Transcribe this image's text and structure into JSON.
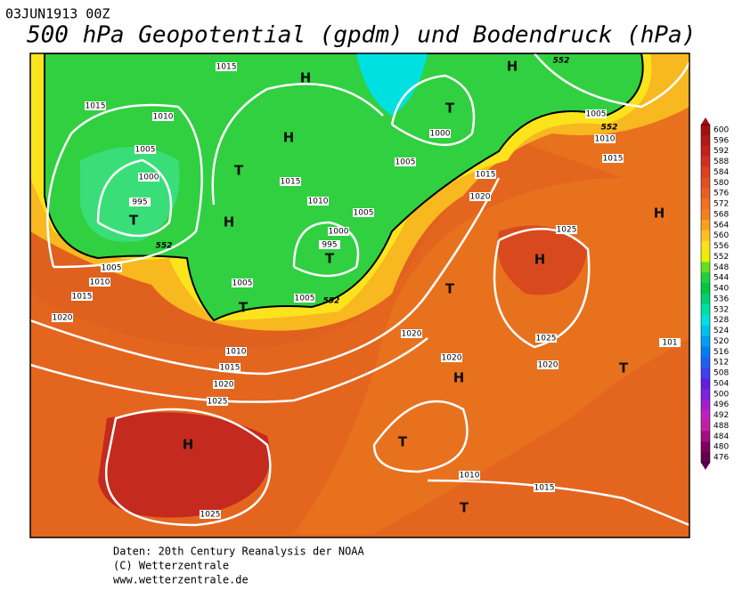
{
  "header": {
    "date": "03JUN1913 00Z",
    "title": "500 hPa Geopotential (gpdm) und Bodendruck (hPa)"
  },
  "isobar_labels": [
    "1015",
    "1015",
    "1010",
    "1005",
    "1000",
    "995",
    "1015",
    "1010",
    "1005",
    "1000",
    "995",
    "1005",
    "1005",
    "1005",
    "1010",
    "1015",
    "1020",
    "1010",
    "1015",
    "1020",
    "1025",
    "1025",
    "1000",
    "1005",
    "1015",
    "1020",
    "1025",
    "1025",
    "1020",
    "1020",
    "1020",
    "1010",
    "1015",
    "1005",
    "1010",
    "1015",
    "101"
  ],
  "geopotential_labels": [
    "552",
    "552",
    "552",
    "552"
  ],
  "pressure_centers": [
    "T",
    "H",
    "T",
    "H",
    "T",
    "T",
    "T",
    "H",
    "H",
    "H",
    "H",
    "T",
    "H",
    "T",
    "T",
    "H",
    "T"
  ],
  "colorbar": {
    "values": [
      600,
      596,
      592,
      588,
      584,
      580,
      576,
      572,
      568,
      564,
      560,
      556,
      552,
      548,
      544,
      540,
      536,
      532,
      528,
      524,
      520,
      516,
      512,
      508,
      504,
      500,
      496,
      492,
      488,
      484,
      480,
      476
    ],
    "colors": [
      "#a01010",
      "#b41818",
      "#c42020",
      "#d03020",
      "#dc4020",
      "#e05020",
      "#e86020",
      "#f07020",
      "#f48020",
      "#f8a020",
      "#fcc020",
      "#fce020",
      "#e8f000",
      "#60e020",
      "#20d040",
      "#00c840",
      "#00d070",
      "#00e0a0",
      "#00e0e0",
      "#00c0f0",
      "#00a0f0",
      "#0080f0",
      "#2060f0",
      "#4040f0",
      "#6020e0",
      "#8020e0",
      "#a020d0",
      "#c020c0",
      "#c020a0",
      "#a01080",
      "#800060",
      "#600050"
    ]
  },
  "footer": {
    "source": "Daten: 20th Century Reanalysis der NOAA",
    "copyright": "(C) Wetterzentrale",
    "url": "www.wetterzentrale.de"
  }
}
